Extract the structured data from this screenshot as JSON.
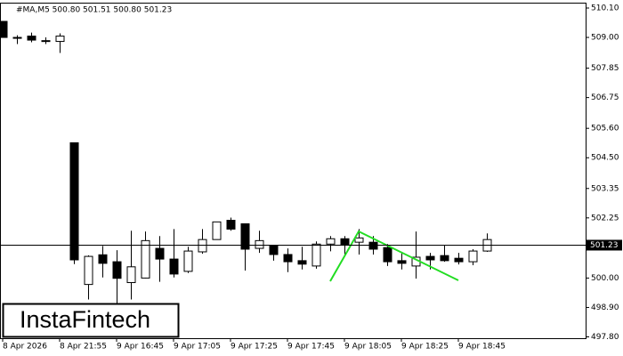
{
  "chart_data": {
    "type": "candlestick",
    "title": "#MA,M5  500.80 501.51 500.80 501.23",
    "categories": [
      "8 Apr 2026",
      null,
      null,
      null,
      "8 Apr 21:55",
      null,
      null,
      null,
      "9 Apr 16:45",
      null,
      null,
      null,
      "9 Apr 17:05",
      null,
      null,
      null,
      "9 Apr 17:25",
      null,
      null,
      null,
      "9 Apr 17:45",
      null,
      null,
      null,
      "9 Apr 18:05",
      null,
      null,
      null,
      "9 Apr 18:25",
      null,
      null,
      null,
      "9 Apr 18:45",
      null,
      null
    ],
    "series": [
      {
        "name": "#MA,M5",
        "color": "#000000",
        "open": [
          509.6,
          509.0,
          509.05,
          508.88,
          508.85,
          505.06,
          499.76,
          500.87,
          500.61,
          499.83,
          500.0,
          501.11,
          500.71,
          500.25,
          500.98,
          501.44,
          502.16,
          502.03,
          501.11,
          501.21,
          500.88,
          500.65,
          500.45,
          501.27,
          501.47,
          501.34,
          501.34,
          501.14,
          500.65,
          500.45,
          500.81,
          500.84,
          500.74,
          500.61,
          501.01
        ],
        "high": [
          509.6,
          509.08,
          509.18,
          509.0,
          509.15,
          505.06,
          500.85,
          501.2,
          501.04,
          501.77,
          501.74,
          501.57,
          501.83,
          501.17,
          501.83,
          502.1,
          502.26,
          502.03,
          501.77,
          501.21,
          501.11,
          501.17,
          501.37,
          501.57,
          501.57,
          501.83,
          501.57,
          501.27,
          500.98,
          501.74,
          500.94,
          501.24,
          500.94,
          501.08,
          501.67
        ],
        "low": [
          509.0,
          508.75,
          508.82,
          508.75,
          508.42,
          500.52,
          499.2,
          500.02,
          499.03,
          499.2,
          499.99,
          499.86,
          500.02,
          500.19,
          500.91,
          501.44,
          501.77,
          500.28,
          500.94,
          500.65,
          500.22,
          500.32,
          500.35,
          501.0,
          500.81,
          500.88,
          500.88,
          500.45,
          500.32,
          499.98,
          500.32,
          500.61,
          500.51,
          500.48,
          500.98
        ],
        "close": [
          509.0,
          508.98,
          508.9,
          508.88,
          509.05,
          500.68,
          500.81,
          500.55,
          499.99,
          500.42,
          501.4,
          500.71,
          500.15,
          501.01,
          501.44,
          502.1,
          501.83,
          501.08,
          501.4,
          500.88,
          500.61,
          500.52,
          501.27,
          501.47,
          501.24,
          501.5,
          501.08,
          500.61,
          500.55,
          500.78,
          500.68,
          500.65,
          500.61,
          501.01,
          501.44
        ]
      }
    ],
    "current_price": 501.23,
    "ylim": [
      497.75,
      510.3
    ],
    "yticks": [
      {
        "value": 510.1,
        "label": "510.10"
      },
      {
        "value": 509,
        "label": "509.00"
      },
      507.85,
      506.75,
      {
        "value": 505.6,
        "label": "505.60"
      },
      {
        "value": 504.5,
        "label": "504.50"
      },
      503.35,
      502.25,
      {
        "value": 500,
        "label": "500.00"
      },
      {
        "value": 498.9,
        "label": "498.90"
      },
      {
        "value": 497.8,
        "label": "497.80"
      }
    ],
    "watermark": "InstaFintech"
  }
}
